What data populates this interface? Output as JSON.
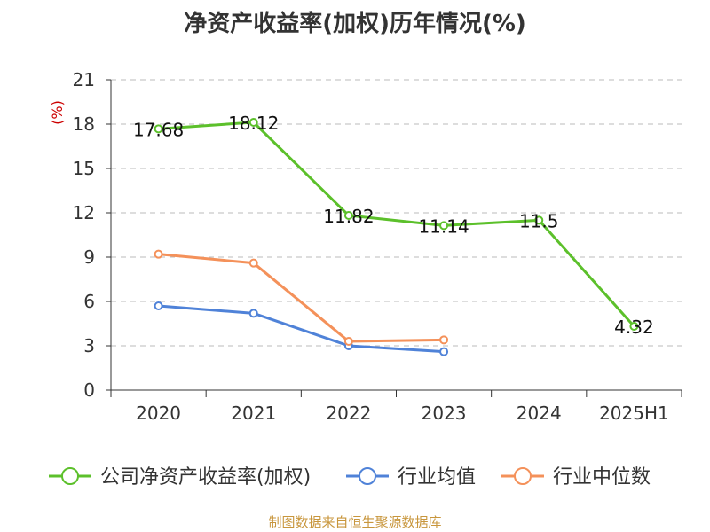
{
  "chart_data": {
    "type": "line",
    "title": "净资产收益率(加权)历年情况(%)",
    "ylabel": "(%)",
    "xlabel": "",
    "categories": [
      "2020",
      "2021",
      "2022",
      "2023",
      "2024",
      "2025H1"
    ],
    "ylim": [
      0,
      21
    ],
    "yticks": [
      0,
      3,
      6,
      9,
      12,
      15,
      18,
      21
    ],
    "grid": true,
    "legend_position": "bottom",
    "series": [
      {
        "name": "公司净资产收益率(加权)",
        "color": "#5cc02b",
        "values": [
          17.68,
          18.12,
          11.82,
          11.14,
          11.5,
          4.32
        ],
        "labels": [
          "17.68",
          "18.12",
          "11.82",
          "11.14",
          "11.5",
          "4.32"
        ]
      },
      {
        "name": "行业均值",
        "color": "#4f82d8",
        "values": [
          5.7,
          5.2,
          3.0,
          2.6,
          null,
          null
        ]
      },
      {
        "name": "行业中位数",
        "color": "#f4915a",
        "values": [
          9.2,
          8.6,
          3.3,
          3.4,
          null,
          null
        ]
      }
    ],
    "source": "制图数据来自恒生聚源数据库"
  }
}
